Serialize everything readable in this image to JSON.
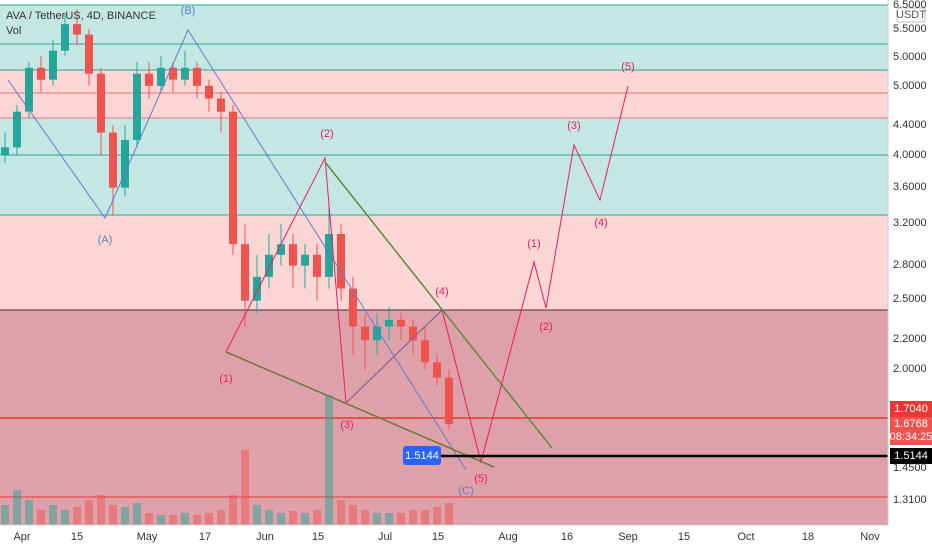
{
  "header": {
    "symbol": "AVA / TetherUS, 4D, BINANCE",
    "volume": "Vol"
  },
  "currency": "USDT",
  "price_axis": [
    "6.5000",
    "5.5000",
    "5.0000",
    "5.0000",
    "4.4000",
    "4.0000",
    "3.6000",
    "3.2000",
    "2.8000",
    "2.5000",
    "2.2000",
    "2.0000",
    "1.4500",
    "1.3100"
  ],
  "badges": {
    "last": "1.7040",
    "current": "1.6768",
    "countdown": "08:34:25",
    "level": "1.5144"
  },
  "level_label": "1.5144",
  "date_axis": [
    "Apr",
    "15",
    "May",
    "17",
    "Jun",
    "15",
    "Jul",
    "15",
    "Aug",
    "16",
    "Sep",
    "15",
    "Oct",
    "18",
    "Nov"
  ],
  "wave_labels": [
    "(B)",
    "(A)",
    "(C)",
    "(1)",
    "(2)",
    "(3)",
    "(4)",
    "(5)",
    "(1)",
    "(2)",
    "(3)",
    "(4)",
    "(5)"
  ],
  "candles": [
    [
      4.0,
      4.3,
      3.9,
      4.1
    ],
    [
      4.1,
      4.7,
      4.0,
      4.6
    ],
    [
      4.6,
      5.4,
      4.5,
      5.3
    ],
    [
      5.3,
      5.5,
      4.9,
      5.1
    ],
    [
      5.1,
      5.8,
      5.0,
      5.6
    ],
    [
      5.6,
      6.3,
      5.5,
      6.1
    ],
    [
      6.1,
      6.4,
      5.7,
      5.9
    ],
    [
      5.9,
      6.0,
      5.0,
      5.2
    ],
    [
      5.2,
      5.3,
      4.0,
      4.3
    ],
    [
      4.3,
      4.4,
      3.3,
      3.6
    ],
    [
      3.6,
      4.4,
      3.5,
      4.2
    ],
    [
      4.2,
      5.4,
      4.1,
      5.2
    ],
    [
      5.2,
      5.4,
      4.8,
      5.0
    ],
    [
      5.0,
      5.5,
      4.9,
      5.3
    ],
    [
      5.3,
      5.4,
      4.9,
      5.1
    ],
    [
      5.1,
      5.6,
      5.0,
      5.3
    ],
    [
      5.3,
      5.4,
      4.8,
      5.0
    ],
    [
      5.0,
      5.1,
      4.6,
      4.8
    ],
    [
      4.8,
      4.9,
      4.3,
      4.6
    ],
    [
      4.6,
      4.7,
      2.9,
      3.0
    ],
    [
      3.0,
      3.2,
      2.3,
      2.5
    ],
    [
      2.5,
      2.9,
      2.4,
      2.7
    ],
    [
      2.7,
      3.1,
      2.6,
      2.9
    ],
    [
      2.9,
      3.2,
      2.8,
      3.0
    ],
    [
      3.0,
      3.1,
      2.6,
      2.8
    ],
    [
      2.8,
      3.0,
      2.6,
      2.9
    ],
    [
      2.9,
      3.0,
      2.5,
      2.7
    ],
    [
      2.7,
      3.4,
      2.6,
      3.1
    ],
    [
      3.1,
      3.2,
      2.5,
      2.6
    ],
    [
      2.6,
      2.7,
      2.1,
      2.3
    ],
    [
      2.3,
      2.4,
      2.0,
      2.2
    ],
    [
      2.2,
      2.4,
      2.1,
      2.3
    ],
    [
      2.3,
      2.45,
      2.2,
      2.35
    ],
    [
      2.35,
      2.4,
      2.2,
      2.3
    ],
    [
      2.3,
      2.35,
      2.1,
      2.2
    ],
    [
      2.2,
      2.3,
      2.0,
      2.05
    ],
    [
      2.05,
      2.1,
      1.9,
      1.95
    ],
    [
      1.95,
      2.0,
      1.65,
      1.68
    ]
  ],
  "volumes": [
    20,
    35,
    25,
    15,
    20,
    15,
    18,
    25,
    30,
    20,
    18,
    22,
    12,
    10,
    10,
    12,
    10,
    12,
    15,
    30,
    75,
    20,
    15,
    12,
    14,
    12,
    15,
    130,
    25,
    20,
    15,
    12,
    12,
    12,
    15,
    15,
    18,
    22
  ]
}
